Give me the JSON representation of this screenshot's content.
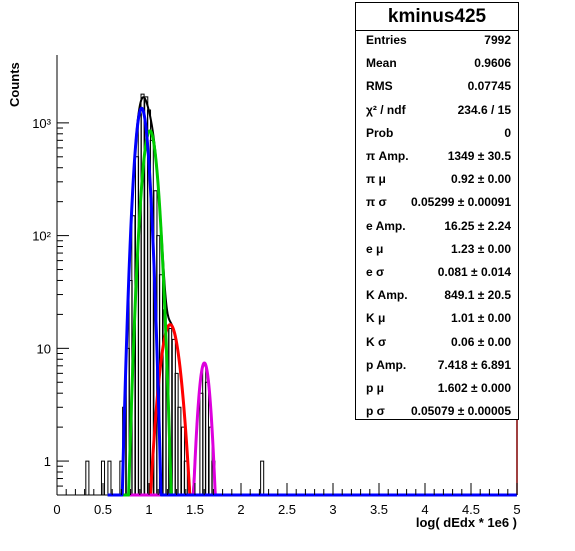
{
  "chart_data": {
    "type": "histogram",
    "xlabel": "log( dEdx * 1e6 )",
    "ylabel": "Counts",
    "xlim": [
      0,
      5
    ],
    "ylim": [
      0.5,
      4000
    ],
    "yscale": "log",
    "xticks": [
      "0",
      "0.5",
      "1",
      "1.5",
      "2",
      "2.5",
      "3",
      "3.5",
      "4",
      "4.5",
      "5"
    ],
    "yticks": [
      {
        "value": 1,
        "label": "1"
      },
      {
        "value": 10,
        "label": "10"
      },
      {
        "value": 100,
        "label": "10²"
      },
      {
        "value": 1000,
        "label": "10³"
      }
    ],
    "histogram": {
      "bin_width": 0.03333,
      "bins": [
        {
          "x": 0.33,
          "y": 1
        },
        {
          "x": 0.5,
          "y": 1
        },
        {
          "x": 0.57,
          "y": 1
        },
        {
          "x": 0.7,
          "y": 1
        },
        {
          "x": 0.73,
          "y": 3
        },
        {
          "x": 0.77,
          "y": 10
        },
        {
          "x": 0.8,
          "y": 40
        },
        {
          "x": 0.83,
          "y": 150
        },
        {
          "x": 0.87,
          "y": 500
        },
        {
          "x": 0.9,
          "y": 1200
        },
        {
          "x": 0.93,
          "y": 1800
        },
        {
          "x": 0.97,
          "y": 1700
        },
        {
          "x": 1.0,
          "y": 1300
        },
        {
          "x": 1.03,
          "y": 700
        },
        {
          "x": 1.07,
          "y": 250
        },
        {
          "x": 1.1,
          "y": 100
        },
        {
          "x": 1.13,
          "y": 45
        },
        {
          "x": 1.17,
          "y": 22
        },
        {
          "x": 1.2,
          "y": 16
        },
        {
          "x": 1.23,
          "y": 15
        },
        {
          "x": 1.27,
          "y": 12
        },
        {
          "x": 1.3,
          "y": 6
        },
        {
          "x": 1.33,
          "y": 3
        },
        {
          "x": 1.37,
          "y": 2
        },
        {
          "x": 1.4,
          "y": 1
        },
        {
          "x": 1.57,
          "y": 4
        },
        {
          "x": 1.6,
          "y": 7
        },
        {
          "x": 1.63,
          "y": 5
        },
        {
          "x": 1.67,
          "y": 2
        },
        {
          "x": 1.7,
          "y": 1
        },
        {
          "x": 2.23,
          "y": 1
        }
      ]
    },
    "series": [
      {
        "key": "total",
        "color": "#000000",
        "component": "sum"
      },
      {
        "key": "pi",
        "color": "#0000ff",
        "amp": 1349,
        "mu": 0.92,
        "sigma": 0.05299
      },
      {
        "key": "K",
        "color": "#00cc00",
        "amp": 849.1,
        "mu": 1.01,
        "sigma": 0.06
      },
      {
        "key": "e",
        "color": "#ff0000",
        "amp": 16.25,
        "mu": 1.23,
        "sigma": 0.081
      },
      {
        "key": "p",
        "color": "#dd00dd",
        "amp": 7.418,
        "mu": 1.602,
        "sigma": 0.05079
      }
    ]
  },
  "stats": {
    "title": "kminus425",
    "rows": [
      {
        "label": "Entries",
        "value": "7992"
      },
      {
        "label": "Mean",
        "value": "0.9606"
      },
      {
        "label": "RMS",
        "value": "0.07745"
      },
      {
        "label": "χ² / ndf",
        "value": "234.6 / 15"
      },
      {
        "label": "Prob",
        "value": "0"
      },
      {
        "label": "π Amp.",
        "value": "1349 ± 30.5"
      },
      {
        "label": "π μ",
        "value": "0.92 ± 0.00"
      },
      {
        "label": "π σ",
        "value": "0.05299 ± 0.00091"
      },
      {
        "label": "e Amp.",
        "value": "16.25 ± 2.24"
      },
      {
        "label": "e μ",
        "value": "1.23 ± 0.00"
      },
      {
        "label": "e σ",
        "value": "0.081 ± 0.014"
      },
      {
        "label": "K Amp.",
        "value": "849.1 ± 20.5"
      },
      {
        "label": "K μ",
        "value": "1.01 ± 0.00"
      },
      {
        "label": "K σ",
        "value": "0.06 ± 0.00"
      },
      {
        "label": "p Amp.",
        "value": "7.418 ± 6.891"
      },
      {
        "label": "p μ",
        "value": "1.602 ± 0.000"
      },
      {
        "label": "p σ",
        "value": "0.05079 ± 0.00005"
      }
    ]
  }
}
